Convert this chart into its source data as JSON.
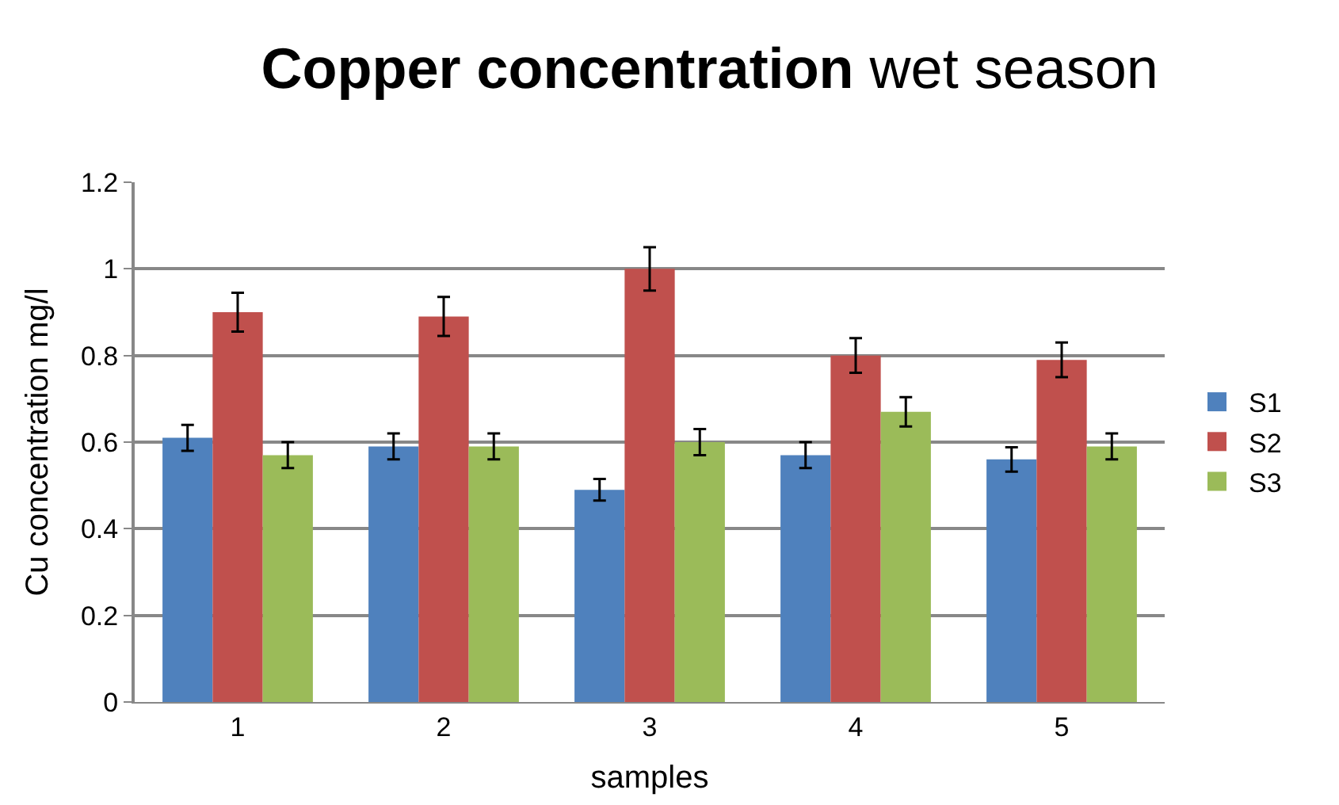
{
  "chart_data": {
    "type": "bar",
    "title": "Copper concentration wet season",
    "xlabel": "samples",
    "ylabel": "Cu concentration mg/l",
    "categories": [
      "1",
      "2",
      "3",
      "4",
      "5"
    ],
    "series": [
      {
        "name": "S1",
        "color": "#4f81bd",
        "values": [
          0.61,
          0.59,
          0.49,
          0.57,
          0.56
        ],
        "errors": [
          0.03,
          0.03,
          0.025,
          0.03,
          0.028
        ]
      },
      {
        "name": "S2",
        "color": "#c0504d",
        "values": [
          0.9,
          0.89,
          1.0,
          0.8,
          0.79
        ],
        "errors": [
          0.045,
          0.045,
          0.05,
          0.04,
          0.04
        ]
      },
      {
        "name": "S3",
        "color": "#9bbb59",
        "values": [
          0.57,
          0.59,
          0.6,
          0.67,
          0.59
        ],
        "errors": [
          0.03,
          0.03,
          0.03,
          0.034,
          0.03
        ]
      }
    ],
    "ylim": [
      0,
      1.2
    ],
    "yticks": [
      0,
      0.2,
      0.4,
      0.6,
      0.8,
      1,
      1.2
    ],
    "grid": "y",
    "legend": "right"
  }
}
